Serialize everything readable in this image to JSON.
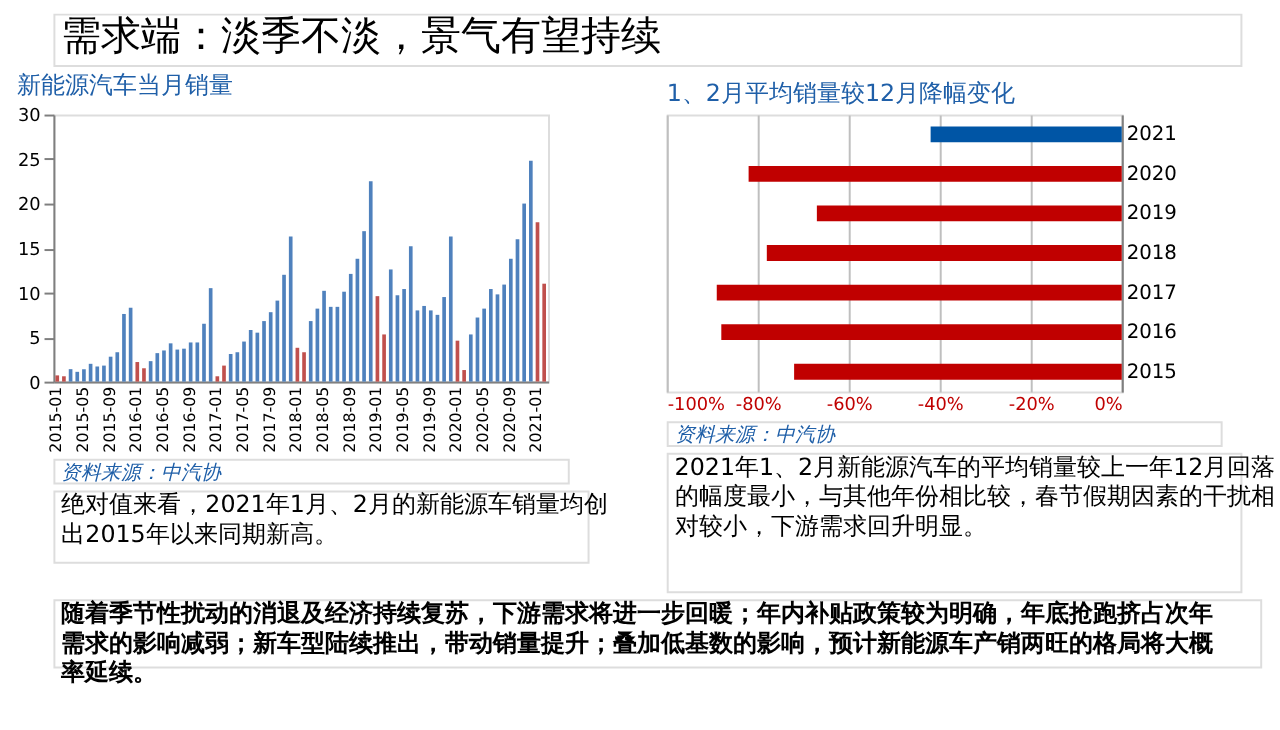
{
  "chart_data": [
    {
      "type": "bar",
      "title": "新能源汽车当月销量",
      "categories": [
        "2015-01",
        null,
        null,
        null,
        "2015-05",
        null,
        null,
        null,
        "2015-09",
        null,
        null,
        null,
        "2016-01",
        null,
        null,
        null,
        "2016-05",
        null,
        null,
        null,
        "2016-09",
        null,
        null,
        null,
        "2017-01",
        null,
        null,
        null,
        "2017-05",
        null,
        null,
        null,
        "2017-09",
        null,
        null,
        null,
        "2018-01",
        null,
        null,
        null,
        "2018-05",
        null,
        null,
        null,
        "2018-09",
        null,
        null,
        null,
        "2019-01",
        null,
        null,
        null,
        "2019-05",
        null,
        null,
        null,
        "2019-09",
        null,
        null,
        null,
        "2020-01",
        null,
        null,
        null,
        "2020-05",
        null,
        null,
        null,
        "2020-09",
        null,
        null,
        null,
        "2021-01",
        null
      ],
      "values": [
        0.7,
        0.6,
        1.4,
        1.1,
        1.4,
        2.0,
        1.7,
        1.8,
        2.8,
        3.3,
        7.6,
        8.3,
        2.2,
        1.5,
        2.3,
        3.2,
        3.5,
        4.3,
        3.6,
        3.7,
        4.4,
        4.4,
        6.5,
        10.5,
        0.6,
        1.8,
        3.1,
        3.3,
        4.5,
        5.8,
        5.5,
        6.8,
        7.8,
        9.1,
        12.0,
        16.3,
        3.8,
        3.3,
        6.8,
        8.2,
        10.2,
        8.4,
        8.4,
        10.1,
        12.1,
        13.8,
        16.9,
        22.5,
        9.6,
        5.3,
        12.6,
        9.7,
        10.4,
        15.2,
        8.0,
        8.5,
        8.0,
        7.5,
        9.5,
        16.3,
        4.6,
        1.3,
        5.3,
        7.2,
        8.2,
        10.4,
        9.8,
        10.9,
        13.8,
        16.0,
        20.0,
        24.8,
        17.9,
        11.0
      ],
      "colors": [
        "#c0504d",
        "#c0504d",
        "#4f81bd",
        "#4f81bd",
        "#4f81bd",
        "#4f81bd",
        "#4f81bd",
        "#4f81bd",
        "#4f81bd",
        "#4f81bd",
        "#4f81bd",
        "#4f81bd",
        "#c0504d",
        "#c0504d",
        "#4f81bd",
        "#4f81bd",
        "#4f81bd",
        "#4f81bd",
        "#4f81bd",
        "#4f81bd",
        "#4f81bd",
        "#4f81bd",
        "#4f81bd",
        "#4f81bd",
        "#c0504d",
        "#c0504d",
        "#4f81bd",
        "#4f81bd",
        "#4f81bd",
        "#4f81bd",
        "#4f81bd",
        "#4f81bd",
        "#4f81bd",
        "#4f81bd",
        "#4f81bd",
        "#4f81bd",
        "#c0504d",
        "#c0504d",
        "#4f81bd",
        "#4f81bd",
        "#4f81bd",
        "#4f81bd",
        "#4f81bd",
        "#4f81bd",
        "#4f81bd",
        "#4f81bd",
        "#4f81bd",
        "#4f81bd",
        "#c0504d",
        "#c0504d",
        "#4f81bd",
        "#4f81bd",
        "#4f81bd",
        "#4f81bd",
        "#4f81bd",
        "#4f81bd",
        "#4f81bd",
        "#4f81bd",
        "#4f81bd",
        "#4f81bd",
        "#c0504d",
        "#c0504d",
        "#4f81bd",
        "#4f81bd",
        "#4f81bd",
        "#4f81bd",
        "#4f81bd",
        "#4f81bd",
        "#4f81bd",
        "#4f81bd",
        "#4f81bd",
        "#4f81bd",
        "#c0504d",
        "#c0504d"
      ],
      "ylim": [
        0,
        30
      ],
      "yticks": [
        0,
        5,
        10,
        15,
        20,
        25,
        30
      ],
      "grid": false,
      "annotations": [
        "需求端：淡季不淡，景气有望持续",
        "资料来源：中汽协",
        "绝对值来看，2021年1月、2月的新能源车销量均创出2015年以来同期新高。"
      ]
    },
    {
      "type": "bar",
      "orientation": "horizontal",
      "title": "1、2月平均销量较12月降幅变化",
      "categories": [
        "2021",
        "2020",
        "2019",
        "2018",
        "2017",
        "2016",
        "2015"
      ],
      "values": [
        -42,
        -82,
        -67,
        -78,
        -89,
        -88,
        -72
      ],
      "colors": [
        "#0055a5",
        "#c00000",
        "#c00000",
        "#c00000",
        "#c00000",
        "#c00000",
        "#c00000"
      ],
      "xlim": [
        -100,
        0
      ],
      "xticks": [
        {
          "value": -100,
          "label": "-100%"
        },
        {
          "value": -80,
          "label": "-80%"
        },
        {
          "value": -60,
          "label": "-60%"
        },
        {
          "value": -40,
          "label": "-40%"
        },
        {
          "value": -20,
          "label": "-20%"
        },
        {
          "value": 0,
          "label": "0%"
        }
      ],
      "grid": "x",
      "annotations": [
        "资料来源：中汽协",
        "2021年1、2月新能源汽车的平均销量较上一年12月回落的幅度最小，与其他年份相比较，春节假期因素的干扰相对较小，下游需求回升明显。",
        "随着季节性扰动的消退及经济持续复苏，下游需求将进一步回暖；年内补贴政策较为明确，年底抢跑挤占次年需求的影响减弱；新车型陆续推出，带动销量提升；叠加低基数的影响，预计新能源车产销两旺的格局将大概率延续。"
      ]
    }
  ]
}
